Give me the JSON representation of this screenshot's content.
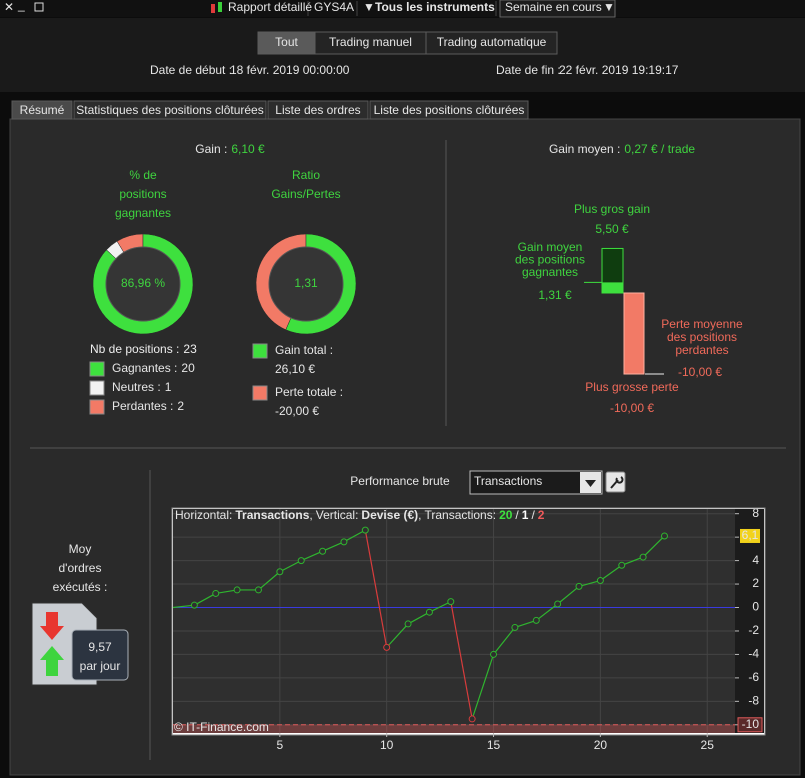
{
  "toolbar": {
    "report": "Rapport détaillé",
    "account": "GYS4A",
    "instruments": "Tous les instruments",
    "period": "Semaine en cours"
  },
  "filter_buttons": [
    "Tout",
    "Trading manuel",
    "Trading automatique"
  ],
  "dates": {
    "start_label": "Date de début :",
    "start": "18 févr. 2019 00:00:00",
    "end_label": "Date de fin :",
    "end": "22 févr. 2019 19:19:17"
  },
  "tabs": [
    "Résumé",
    "Statistiques des positions clôturées",
    "Liste des ordres",
    "Liste des positions clôturées"
  ],
  "summary": {
    "gain": {
      "label": "Gain :",
      "value": "6,10 €"
    },
    "win_title": [
      "% de",
      "positions",
      "gagnantes"
    ],
    "win_pct": "86,96 %",
    "ratio_title": [
      "Ratio",
      "Gains/Pertes"
    ],
    "ratio": "1,31",
    "positions": {
      "label": "Nb de positions :",
      "value": 23
    },
    "breakdown": [
      {
        "label": "Gagnantes :",
        "value": 20,
        "color": "#3ee03e"
      },
      {
        "label": "Neutres :",
        "value": 1,
        "color": "#f2f2f2"
      },
      {
        "label": "Perdantes :",
        "value": 2,
        "color": "#f27a66"
      }
    ],
    "totals": [
      {
        "label": "Gain total :",
        "value": 26.1,
        "value_label": "26,10 €",
        "color": "#3ee03e"
      },
      {
        "label": "Perte totale :",
        "value": -20,
        "value_label": "-20,00 €",
        "color": "#f27a66"
      }
    ],
    "average": {
      "label": "Gain moyen :",
      "value": "0,27 € / trade"
    },
    "bars": {
      "max_gain": {
        "label": "Plus gros gain",
        "value": 5.5,
        "value_label": "5,50 €"
      },
      "avg_gain": {
        "label": [
          "Gain moyen",
          "des positions",
          "gagnantes"
        ],
        "value": 1.31,
        "value_label": "1,31 €"
      },
      "avg_loss": {
        "label": [
          "Perte moyenne",
          "des positions",
          "perdantes"
        ],
        "value": -10,
        "value_label": "-10,00 €"
      },
      "max_loss": {
        "label": "Plus grosse perte",
        "value": -10,
        "value_label": "-10,00 €"
      }
    },
    "orders": {
      "label": [
        "Moy",
        "d'ordres",
        "exécutés :"
      ],
      "value": "9,57",
      "unit": "par jour"
    }
  },
  "chart_data": {
    "type": "line",
    "title": "Performance brute",
    "selector": "Transactions",
    "header": {
      "h_label": "Horizontal:",
      "h_value": "Transactions",
      "v_label": "Vertical:",
      "v_value": "Devise (€)",
      "t_label": "Transactions:",
      "counts": [
        "20",
        "1",
        "2"
      ]
    },
    "credit": "© IT-Finance.com",
    "x": [
      0,
      1,
      2,
      3,
      4,
      5,
      6,
      7,
      8,
      9,
      10,
      11,
      12,
      13,
      14,
      15,
      16,
      17,
      18,
      19,
      20,
      21,
      22,
      23
    ],
    "values": [
      0,
      0.2,
      1.2,
      1.5,
      1.5,
      3.05,
      4.0,
      4.8,
      5.6,
      6.6,
      -3.4,
      -1.4,
      -0.4,
      0.5,
      -9.5,
      -4.0,
      -1.7,
      -1.1,
      0.3,
      1.8,
      2.3,
      3.6,
      4.3,
      6.1
    ],
    "value_labels": [
      null,
      null,
      null,
      null,
      null,
      null,
      null,
      null,
      null,
      null,
      null,
      null,
      null,
      null,
      null,
      null,
      null,
      null,
      null,
      null,
      null,
      null,
      null,
      "6,1"
    ],
    "colors": {
      "gain": "#2fb52f",
      "loss": "#d83c3c"
    },
    "xlim": [
      0,
      26.3
    ],
    "ylim": [
      -10.7,
      8.4
    ],
    "xticks": [
      5,
      10,
      15,
      20,
      25
    ],
    "yticks": [
      8,
      6,
      4,
      2,
      0,
      -2,
      -4,
      -6,
      -8,
      -10
    ],
    "grid": true,
    "reference_lines": [
      {
        "value": 0,
        "color": "#3a3ae0",
        "dash": false
      },
      {
        "value": -10,
        "color": "#e05a5a",
        "dash": true
      }
    ]
  }
}
